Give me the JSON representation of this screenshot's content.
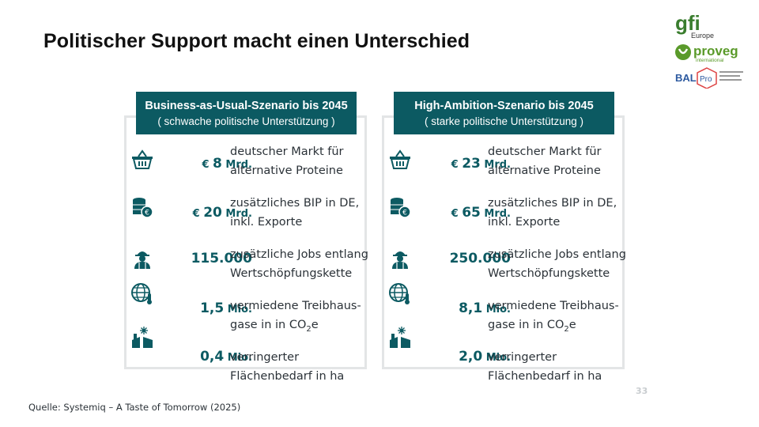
{
  "title": "Politischer Support macht einen Unterschied",
  "logos": {
    "gfi_text": "gfi",
    "gfi_sub": "Europe",
    "proveg_text": "proveg",
    "proveg_sub": "international",
    "balpro_text": "BAL",
    "balpro_pro": "Pro"
  },
  "scenarios": [
    {
      "title": "Business-as-Usual-Szenario bis 2045",
      "subtitle": "( schwache politische Unterstützung )",
      "rows": [
        {
          "icon": "basket-icon",
          "prefix": "€ ",
          "value": "8",
          "unit": " Mrd.",
          "desc1": "deutscher Markt für",
          "desc2": "alternative Proteine"
        },
        {
          "icon": "coins-icon",
          "prefix": "€ ",
          "value": "20",
          "unit": " Mrd.",
          "desc1": "zusätzliches BIP in DE,",
          "desc2": "inkl. Exporte"
        },
        {
          "icon": "worker-icon",
          "prefix": "",
          "value": "115.000",
          "unit": "",
          "desc1": "zusätzliche Jobs entlang",
          "desc2": "Wertschöpfungskette"
        },
        {
          "icon": "globe-thermometer-icon",
          "prefix": "",
          "value": "1,5",
          "unit": " Mio.",
          "desc1": "vermiedene Treibhaus-",
          "desc2": "gase in in CO",
          "desc2_sub": "2",
          "desc2_after": "e"
        },
        {
          "icon": "land-icon",
          "prefix": "",
          "value": "0,4",
          "unit": " Mio.",
          "desc1": "verringerter",
          "desc2": "Flächenbedarf in ha"
        }
      ]
    },
    {
      "title": "High-Ambition-Szenario bis 2045",
      "subtitle": "( starke politische Unterstützung )",
      "rows": [
        {
          "icon": "basket-icon",
          "prefix": "€ ",
          "value": "23",
          "unit": " Mrd.",
          "desc1": "deutscher Markt für",
          "desc2": "alternative Proteine"
        },
        {
          "icon": "coins-icon",
          "prefix": "€ ",
          "value": "65",
          "unit": " Mrd.",
          "desc1": "zusätzliches BIP in DE,",
          "desc2": "inkl. Exporte"
        },
        {
          "icon": "worker-icon",
          "prefix": "",
          "value": "250.000",
          "unit": "",
          "desc1": "zusätzliche Jobs entlang",
          "desc2": "Wertschöpfungskette"
        },
        {
          "icon": "globe-thermometer-icon",
          "prefix": "",
          "value": "8,1",
          "unit": " Mio.",
          "desc1": "vermiedene Treibhaus-",
          "desc2": "gase in in CO",
          "desc2_sub": "2",
          "desc2_after": "e"
        },
        {
          "icon": "land-icon",
          "prefix": "",
          "value": "2,0",
          "unit": " Mio.",
          "desc1": "verringerter",
          "desc2": "Flächenbedarf in ha"
        }
      ]
    }
  ],
  "source": "Quelle: Systemiq – A Taste of Tomorrow (2025)",
  "page_number": "33",
  "colors": {
    "accent": "#0c5a62",
    "border": "#e3e5e6",
    "gfi_green": "#3a7d2e",
    "proveg_green": "#5a9a2a",
    "balpro_blue": "#2d5aa0"
  }
}
